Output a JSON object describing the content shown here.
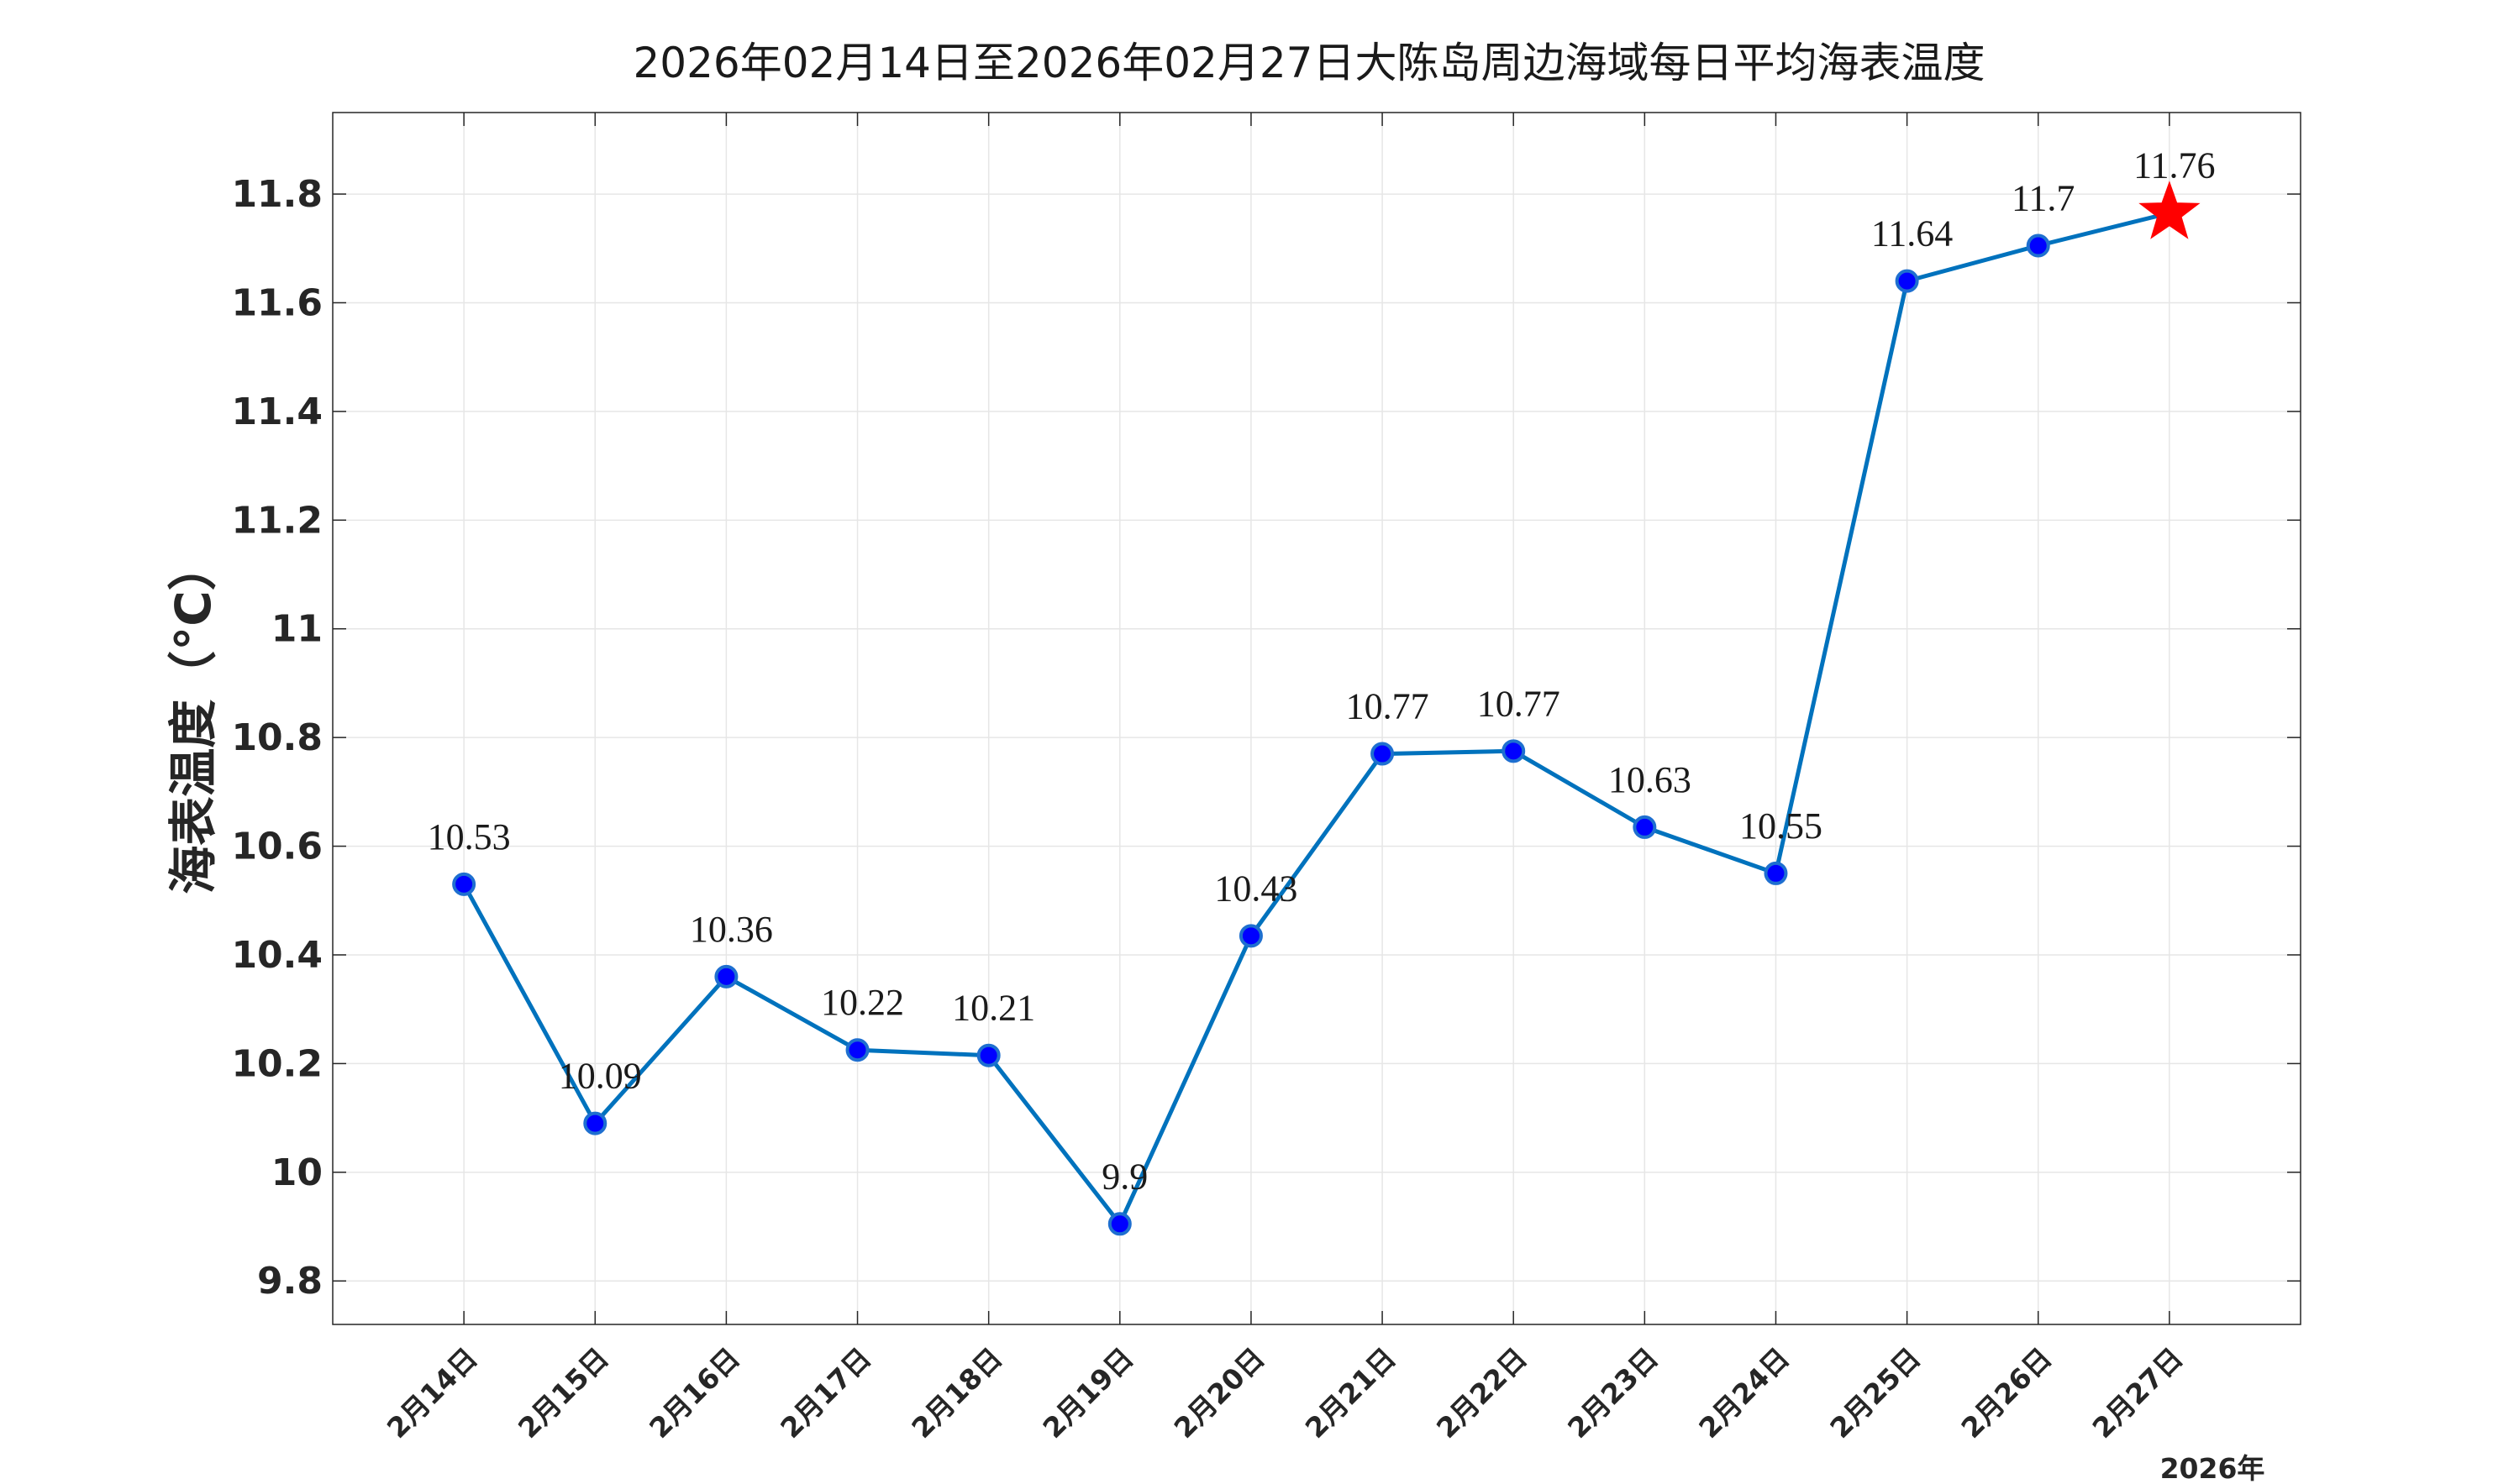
{
  "chart_data": {
    "type": "line",
    "title": "2026年02月14日至2026年02月27日大陈岛周边海域每日平均海表温度",
    "ylabel": "海表温度（°C）",
    "x_year_label": "2026年",
    "categories": [
      "2月14日",
      "2月15日",
      "2月16日",
      "2月17日",
      "2月18日",
      "2月19日",
      "2月20日",
      "2月21日",
      "2月22日",
      "2月23日",
      "2月24日",
      "2月25日",
      "2月26日",
      "2月27日"
    ],
    "values": [
      10.53,
      10.09,
      10.36,
      10.225,
      10.215,
      9.905,
      10.435,
      10.77,
      10.775,
      10.635,
      10.55,
      11.64,
      11.705,
      11.765
    ],
    "data_labels": [
      "10.53",
      "10.09",
      "10.36",
      "10.22",
      "10.21",
      "9.9",
      "10.43",
      "10.77",
      "10.77",
      "10.63",
      "10.55",
      "11.64",
      "11.7",
      "11.76"
    ],
    "ylim": [
      9.72,
      11.95
    ],
    "yticks": [
      9.8,
      10,
      10.2,
      10.4,
      10.6,
      10.8,
      11,
      11.2,
      11.4,
      11.6,
      11.8
    ],
    "ytick_labels": [
      "9.8",
      "10",
      "10.2",
      "10.4",
      "10.6",
      "10.8",
      "11",
      "11.2",
      "11.4",
      "11.6",
      "11.8"
    ],
    "grid": true,
    "line_color": "#0072bd",
    "marker_fill": "#0000ff",
    "marker_edge": "#1e6fd0",
    "last_marker": "star",
    "last_marker_color": "#ff0000"
  }
}
